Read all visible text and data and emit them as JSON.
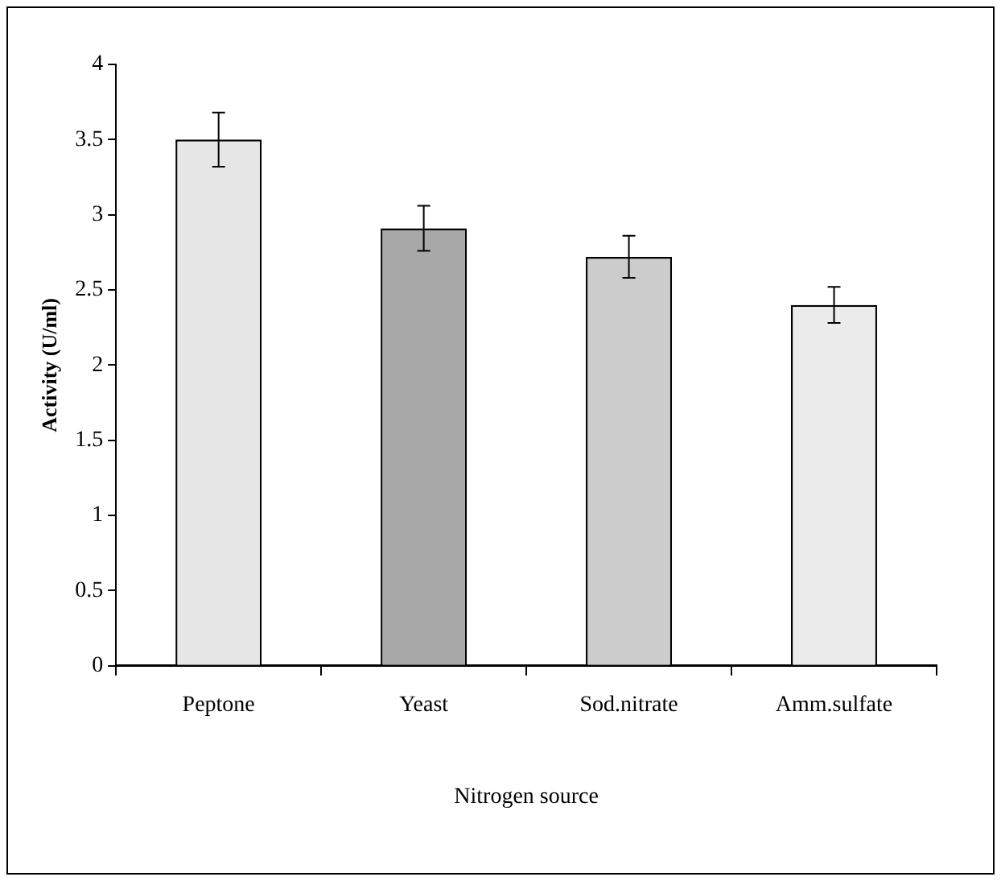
{
  "chart_data": {
    "type": "bar",
    "xlabel": "Nitrogen source",
    "ylabel": "Activity (U/ml)",
    "categories": [
      "Peptone",
      "Yeast",
      "Sod.nitrate",
      "Amm.sulfate"
    ],
    "values": [
      3.5,
      2.91,
      2.72,
      2.4
    ],
    "errors": [
      0.18,
      0.15,
      0.14,
      0.12
    ],
    "colors": [
      "#e6e6e6",
      "#a8a8a8",
      "#cccccc",
      "#ececec"
    ],
    "ylim": [
      0,
      4
    ],
    "yticks": [
      0,
      0.5,
      1,
      1.5,
      2,
      2.5,
      3,
      3.5,
      4
    ],
    "grid": false,
    "legend": false
  }
}
